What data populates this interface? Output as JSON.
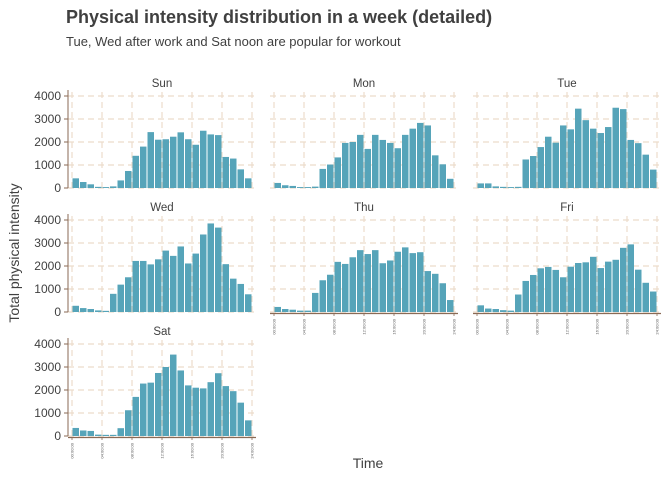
{
  "chart_data": {
    "type": "bar",
    "title": "Physical intensity distribution in a week (detailed)",
    "subtitle": "Tue, Wed after work and Sat noon are popular for workout",
    "xlabel": "Time",
    "ylabel": "Total physical intensity",
    "ylim": [
      0,
      4000
    ],
    "yticks": [
      "0",
      "1000",
      "2000",
      "3000",
      "4000"
    ],
    "xticks": [
      "00:00:00",
      "04:00:00",
      "08:00:00",
      "12:00:00",
      "16:00:00",
      "20:00:00",
      "24:00:00"
    ],
    "grid": true,
    "colors": {
      "bar": "#56a4b9",
      "grid": "#ecdccb",
      "axis": "#8a6a55"
    },
    "facets": [
      {
        "label": "Sun",
        "values": [
          420,
          260,
          160,
          50,
          40,
          70,
          330,
          740,
          1400,
          1800,
          2430,
          2100,
          2120,
          2230,
          2420,
          2120,
          1880,
          2490,
          2330,
          2300,
          1350,
          1280,
          810,
          420
        ]
      },
      {
        "label": "Mon",
        "values": [
          220,
          120,
          90,
          40,
          40,
          60,
          830,
          1020,
          1330,
          1960,
          2000,
          2310,
          1700,
          2310,
          2090,
          1960,
          1730,
          2310,
          2580,
          2830,
          2720,
          1420,
          1030,
          400
        ]
      },
      {
        "label": "Tue",
        "values": [
          200,
          200,
          70,
          50,
          40,
          50,
          1240,
          1390,
          1780,
          2230,
          1970,
          2720,
          2550,
          3450,
          2950,
          2580,
          2390,
          2650,
          3490,
          3430,
          2090,
          1950,
          1450,
          800
        ]
      },
      {
        "label": "Wed",
        "values": [
          270,
          170,
          130,
          70,
          50,
          790,
          1190,
          1510,
          2220,
          2220,
          2070,
          2290,
          2670,
          2440,
          2850,
          2110,
          2540,
          3370,
          3850,
          3670,
          2080,
          1450,
          1220,
          770
        ]
      },
      {
        "label": "Thu",
        "values": [
          220,
          130,
          100,
          60,
          60,
          830,
          1380,
          1620,
          2180,
          2090,
          2380,
          2690,
          2520,
          2690,
          2120,
          2240,
          2620,
          2810,
          2560,
          2600,
          1780,
          1660,
          1250,
          520
        ]
      },
      {
        "label": "Fri",
        "values": [
          290,
          150,
          130,
          80,
          60,
          760,
          1350,
          1610,
          1900,
          1960,
          1830,
          1510,
          1970,
          2130,
          2160,
          2400,
          1910,
          2190,
          2270,
          2790,
          2940,
          1840,
          1270,
          890
        ]
      },
      {
        "label": "Sat",
        "values": [
          350,
          240,
          220,
          60,
          50,
          50,
          340,
          1120,
          1700,
          2280,
          2320,
          2740,
          3000,
          3540,
          2850,
          2200,
          2100,
          2070,
          2340,
          2730,
          2170,
          1950,
          1450,
          680
        ]
      }
    ]
  }
}
